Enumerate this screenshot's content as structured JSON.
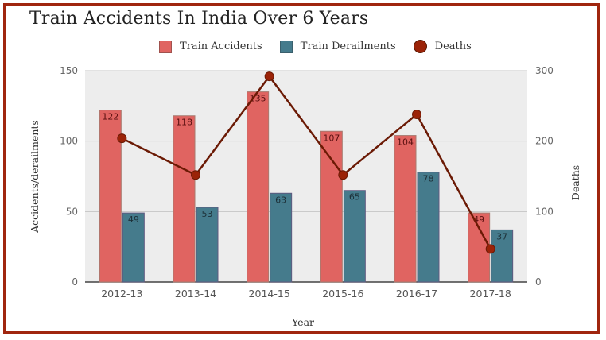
{
  "title": "Train Accidents In India Over 6 Years",
  "legend": [
    {
      "label": "Train Accidents",
      "color": "#e06461",
      "shape": "square"
    },
    {
      "label": "Train Derailments",
      "color": "#457b8c",
      "shape": "square"
    },
    {
      "label": "Deaths",
      "color": "#9b2308",
      "shape": "circle"
    }
  ],
  "axes": {
    "x_label": "Year",
    "y_left_label": "Accidents/derailments",
    "y_right_label": "Deaths",
    "y_left_ticks": [
      "0",
      "50",
      "100",
      "150"
    ],
    "y_right_ticks": [
      "0",
      "100",
      "200",
      "300"
    ]
  },
  "colors": {
    "accidents": "#e06461",
    "derailments": "#457b8c",
    "deaths": "#9b2308",
    "deaths_line": "#6b1a05",
    "plot_bg": "#ededed",
    "frame": "#a0260f"
  },
  "chart_data": {
    "type": "bar",
    "title": "Train Accidents In India Over 6 Years",
    "categories": [
      "2012-13",
      "2013-14",
      "2014-15",
      "2015-16",
      "2016-17",
      "2017-18"
    ],
    "series": [
      {
        "name": "Train Accidents",
        "type": "bar",
        "axis": "left",
        "values": [
          122,
          118,
          135,
          107,
          104,
          49
        ]
      },
      {
        "name": "Train Derailments",
        "type": "bar",
        "axis": "left",
        "values": [
          49,
          53,
          63,
          65,
          78,
          37
        ]
      },
      {
        "name": "Deaths",
        "type": "line",
        "axis": "right",
        "values": [
          204,
          152,
          292,
          152,
          238,
          47
        ]
      }
    ],
    "xlabel": "Year",
    "ylabel": "Accidents/derailments",
    "y2label": "Deaths",
    "ylim": [
      0,
      150
    ],
    "y2lim": [
      0,
      300
    ],
    "grid": true,
    "legend_position": "top"
  }
}
